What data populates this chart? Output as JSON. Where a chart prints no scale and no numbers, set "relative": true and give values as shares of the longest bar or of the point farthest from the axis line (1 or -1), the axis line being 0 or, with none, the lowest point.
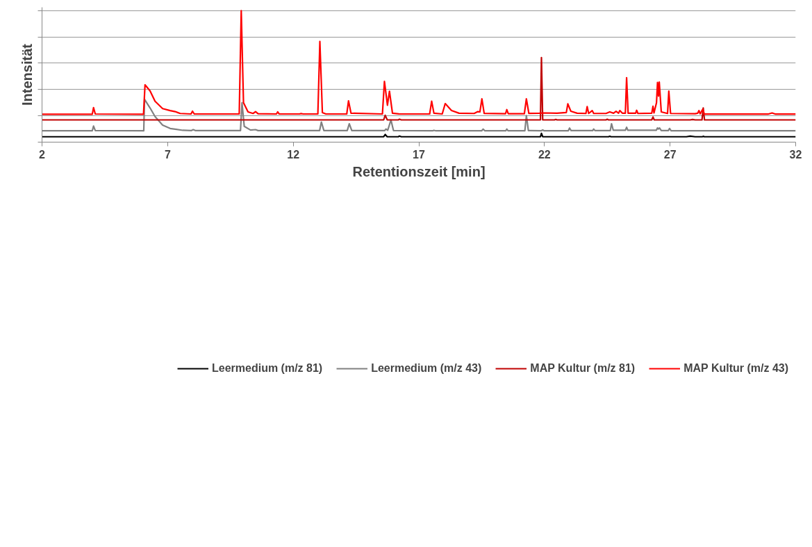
{
  "chart_data": {
    "type": "line",
    "xlabel": "Retentionszeit [min]",
    "ylabel": "Intensität",
    "relative": true,
    "xlim": [
      2,
      32
    ],
    "xticks": [
      2,
      7,
      12,
      17,
      22,
      27,
      32
    ],
    "tick_labels": "x",
    "grid": "y",
    "legend": "bottom",
    "marker": "none",
    "line_style": "solid",
    "series": [
      {
        "name": "Leermedium (m/z 81)",
        "color": "#000000",
        "x": [
          2,
          15.6,
          15.66,
          15.74,
          16.18,
          16.23,
          16.3,
          21.84,
          21.88,
          21.93,
          24.55,
          24.6,
          24.65,
          27.65,
          27.8,
          28.0,
          28.28,
          28.32,
          28.37,
          32
        ],
        "values": [
          0.041,
          0.041,
          0.058,
          0.041,
          0.041,
          0.046,
          0.041,
          0.041,
          0.067,
          0.041,
          0.041,
          0.045,
          0.041,
          0.041,
          0.046,
          0.041,
          0.041,
          0.044,
          0.041,
          0.041
        ]
      },
      {
        "name": "Leermedium (m/z 43)",
        "color": "#808080",
        "x": [
          2,
          4.0,
          4.05,
          4.12,
          6.05,
          6.08,
          6.3,
          6.5,
          6.8,
          7.1,
          7.3,
          7.6,
          7.95,
          8.02,
          8.1,
          9.9,
          9.96,
          10.05,
          10.3,
          10.5,
          10.6,
          13.05,
          13.12,
          13.22,
          14.15,
          14.23,
          14.33,
          15.64,
          15.69,
          15.76,
          15.89,
          15.99,
          17.55,
          17.6,
          17.68,
          19.5,
          19.56,
          19.63,
          20.46,
          20.5,
          20.55,
          21.22,
          21.28,
          21.36,
          21.88,
          21.93,
          21.98,
          22.95,
          23.0,
          23.06,
          23.92,
          23.96,
          24.01,
          24.62,
          24.67,
          24.74,
          25.22,
          25.27,
          25.32,
          26.45,
          26.5,
          26.53,
          26.58,
          26.65,
          26.93,
          26.98,
          27.04,
          32
        ],
        "values": [
          0.086,
          0.086,
          0.122,
          0.088,
          0.086,
          0.326,
          0.26,
          0.194,
          0.13,
          0.104,
          0.098,
          0.09,
          0.088,
          0.095,
          0.088,
          0.088,
          0.299,
          0.12,
          0.092,
          0.095,
          0.088,
          0.088,
          0.153,
          0.088,
          0.088,
          0.14,
          0.088,
          0.088,
          0.1,
          0.09,
          0.168,
          0.088,
          0.086,
          0.09,
          0.086,
          0.086,
          0.099,
          0.086,
          0.086,
          0.099,
          0.086,
          0.086,
          0.202,
          0.088,
          0.087,
          0.092,
          0.087,
          0.087,
          0.107,
          0.088,
          0.088,
          0.1,
          0.088,
          0.088,
          0.14,
          0.09,
          0.09,
          0.113,
          0.09,
          0.09,
          0.108,
          0.1,
          0.108,
          0.088,
          0.088,
          0.104,
          0.087,
          0.086
        ]
      },
      {
        "name": "MAP Kultur (m/z 81)",
        "color": "#c00000",
        "x": [
          2,
          15.6,
          15.66,
          15.74,
          16.18,
          16.23,
          16.3,
          21.84,
          21.88,
          21.93,
          22.4,
          22.45,
          22.5,
          24.45,
          24.5,
          24.55,
          26.27,
          26.32,
          26.37,
          27.8,
          27.9,
          28.0,
          28.27,
          28.32,
          28.37,
          32
        ],
        "values": [
          0.169,
          0.169,
          0.204,
          0.17,
          0.169,
          0.174,
          0.169,
          0.169,
          0.643,
          0.169,
          0.169,
          0.173,
          0.169,
          0.169,
          0.174,
          0.169,
          0.169,
          0.191,
          0.169,
          0.169,
          0.172,
          0.169,
          0.169,
          0.26,
          0.169,
          0.169
        ]
      },
      {
        "name": "MAP Kultur (m/z 43)",
        "color": "#ff0000",
        "x": [
          2,
          4.0,
          4.05,
          4.12,
          6.04,
          6.1,
          6.3,
          6.5,
          6.8,
          7.1,
          7.3,
          7.5,
          7.93,
          7.99,
          8.06,
          9.85,
          9.93,
          10.02,
          10.2,
          10.4,
          10.5,
          10.6,
          11.33,
          11.38,
          11.44,
          12.25,
          12.3,
          12.4,
          12.98,
          13.06,
          13.16,
          13.3,
          14.13,
          14.2,
          14.3,
          15.55,
          15.63,
          15.75,
          15.83,
          15.95,
          16.2,
          17.43,
          17.51,
          17.6,
          17.93,
          18.05,
          18.3,
          18.6,
          19.2,
          19.35,
          19.43,
          19.51,
          19.6,
          20.45,
          20.5,
          20.56,
          21.2,
          21.28,
          21.38,
          21.8,
          22.0,
          22.5,
          22.87,
          22.93,
          23.05,
          23.3,
          23.65,
          23.7,
          23.76,
          23.9,
          23.96,
          24.45,
          24.6,
          24.75,
          24.85,
          24.95,
          25.0,
          25.1,
          25.22,
          25.27,
          25.33,
          25.63,
          25.67,
          25.72,
          26.27,
          26.32,
          26.36,
          26.46,
          26.5,
          26.54,
          26.57,
          26.65,
          26.9,
          26.95,
          27.02,
          28.0,
          28.1,
          28.15,
          28.2,
          28.27,
          28.3,
          28.36,
          30.9,
          31.06,
          31.2,
          32
        ],
        "values": [
          0.212,
          0.212,
          0.262,
          0.214,
          0.212,
          0.436,
          0.39,
          0.31,
          0.255,
          0.24,
          0.232,
          0.218,
          0.214,
          0.235,
          0.214,
          0.214,
          1.0,
          0.3,
          0.23,
          0.218,
          0.232,
          0.216,
          0.214,
          0.23,
          0.214,
          0.214,
          0.217,
          0.214,
          0.214,
          0.765,
          0.225,
          0.214,
          0.214,
          0.314,
          0.22,
          0.214,
          0.462,
          0.281,
          0.387,
          0.22,
          0.215,
          0.214,
          0.311,
          0.22,
          0.214,
          0.293,
          0.24,
          0.22,
          0.218,
          0.232,
          0.23,
          0.329,
          0.219,
          0.216,
          0.247,
          0.216,
          0.216,
          0.329,
          0.218,
          0.22,
          0.222,
          0.22,
          0.225,
          0.291,
          0.235,
          0.22,
          0.218,
          0.27,
          0.218,
          0.24,
          0.218,
          0.218,
          0.23,
          0.22,
          0.235,
          0.22,
          0.24,
          0.22,
          0.22,
          0.49,
          0.22,
          0.22,
          0.242,
          0.218,
          0.22,
          0.273,
          0.222,
          0.3,
          0.454,
          0.35,
          0.457,
          0.23,
          0.218,
          0.388,
          0.218,
          0.216,
          0.22,
          0.24,
          0.215,
          0.24,
          0.25,
          0.213,
          0.213,
          0.222,
          0.213,
          0.213
        ]
      }
    ]
  }
}
